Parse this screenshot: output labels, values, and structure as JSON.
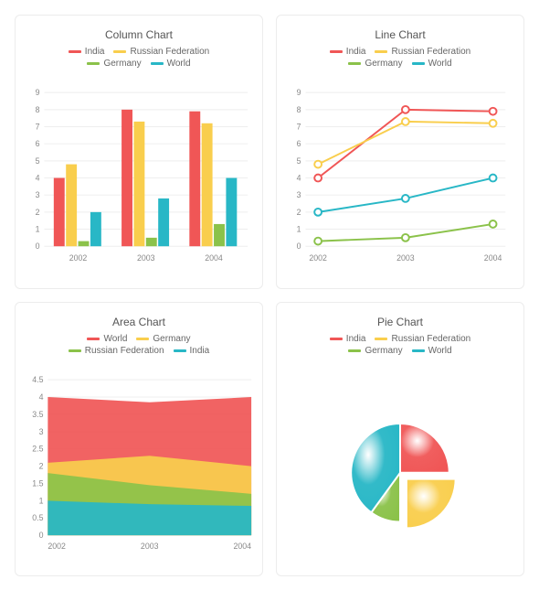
{
  "background_color": "#ffffff",
  "card_border_color": "#ececec",
  "grid_line_color": "#eeeeee",
  "axis_text_color": "#888888",
  "title_color": "#555555",
  "legend_text_color": "#666666",
  "title_fontsize": 12,
  "legend_fontsize": 10,
  "axis_fontsize": 9,
  "colors": {
    "india": "#f05656",
    "russia": "#f9ce4d",
    "germany": "#8bc24a",
    "world": "#28b7c6"
  },
  "column_chart": {
    "type": "bar",
    "title": "Column Chart",
    "legend": [
      {
        "label": "India",
        "color_key": "india"
      },
      {
        "label": "Russian Federation",
        "color_key": "russia"
      },
      {
        "label": "Germany",
        "color_key": "germany"
      },
      {
        "label": "World",
        "color_key": "world"
      }
    ],
    "categories": [
      "2002",
      "2003",
      "2004"
    ],
    "ylim": [
      0,
      9
    ],
    "ytick_step": 1,
    "bar_group_gap": 0.15,
    "bar_width": 0.18,
    "series": [
      {
        "key": "india",
        "values": [
          4.0,
          8.0,
          7.9
        ]
      },
      {
        "key": "russia",
        "values": [
          4.8,
          7.3,
          7.2
        ]
      },
      {
        "key": "germany",
        "values": [
          0.3,
          0.5,
          1.3
        ]
      },
      {
        "key": "world",
        "values": [
          2.0,
          2.8,
          4.0
        ]
      }
    ]
  },
  "line_chart": {
    "type": "line",
    "title": "Line Chart",
    "legend": [
      {
        "label": "India",
        "color_key": "india"
      },
      {
        "label": "Russian Federation",
        "color_key": "russia"
      },
      {
        "label": "Germany",
        "color_key": "germany"
      },
      {
        "label": "World",
        "color_key": "world"
      }
    ],
    "categories": [
      "2002",
      "2003",
      "2004"
    ],
    "ylim": [
      0,
      9
    ],
    "ytick_step": 1,
    "line_width": 2,
    "marker_radius": 4,
    "marker_style": "hollow-circle",
    "series": [
      {
        "key": "india",
        "values": [
          4.0,
          8.0,
          7.9
        ]
      },
      {
        "key": "russia",
        "values": [
          4.8,
          7.3,
          7.2
        ]
      },
      {
        "key": "germany",
        "values": [
          0.3,
          0.5,
          1.3
        ]
      },
      {
        "key": "world",
        "values": [
          2.0,
          2.8,
          4.0
        ]
      }
    ]
  },
  "area_chart": {
    "type": "area",
    "title": "Area Chart",
    "legend": [
      {
        "label": "World",
        "color_key": "india"
      },
      {
        "label": "Germany",
        "color_key": "russia"
      },
      {
        "label": "Russian Federation",
        "color_key": "germany"
      },
      {
        "label": "India",
        "color_key": "world"
      }
    ],
    "categories": [
      "2002",
      "2003",
      "2004"
    ],
    "ylim": [
      0,
      4.5
    ],
    "ytick_step": 0.5,
    "fill_opacity": 0.92,
    "stack": [
      {
        "color_key": "world",
        "top_values": [
          1.0,
          0.9,
          0.85
        ]
      },
      {
        "color_key": "germany",
        "top_values": [
          1.8,
          1.45,
          1.2
        ]
      },
      {
        "color_key": "russia",
        "top_values": [
          2.1,
          2.3,
          2.0
        ]
      },
      {
        "color_key": "india",
        "top_values": [
          4.0,
          3.85,
          4.0
        ]
      }
    ]
  },
  "pie_chart": {
    "type": "pie",
    "title": "Pie Chart",
    "legend": [
      {
        "label": "India",
        "color_key": "india"
      },
      {
        "label": "Russian Federation",
        "color_key": "russia"
      },
      {
        "label": "Germany",
        "color_key": "germany"
      },
      {
        "label": "World",
        "color_key": "world"
      }
    ],
    "slices": [
      {
        "key": "india",
        "fraction": 0.25,
        "exploded": false
      },
      {
        "key": "russia",
        "fraction": 0.25,
        "exploded": true
      },
      {
        "key": "germany",
        "fraction": 0.1,
        "exploded": false
      },
      {
        "key": "world",
        "fraction": 0.4,
        "exploded": false
      }
    ],
    "radius": 55,
    "explode_offset": 10,
    "background_color": "#ffffff"
  }
}
